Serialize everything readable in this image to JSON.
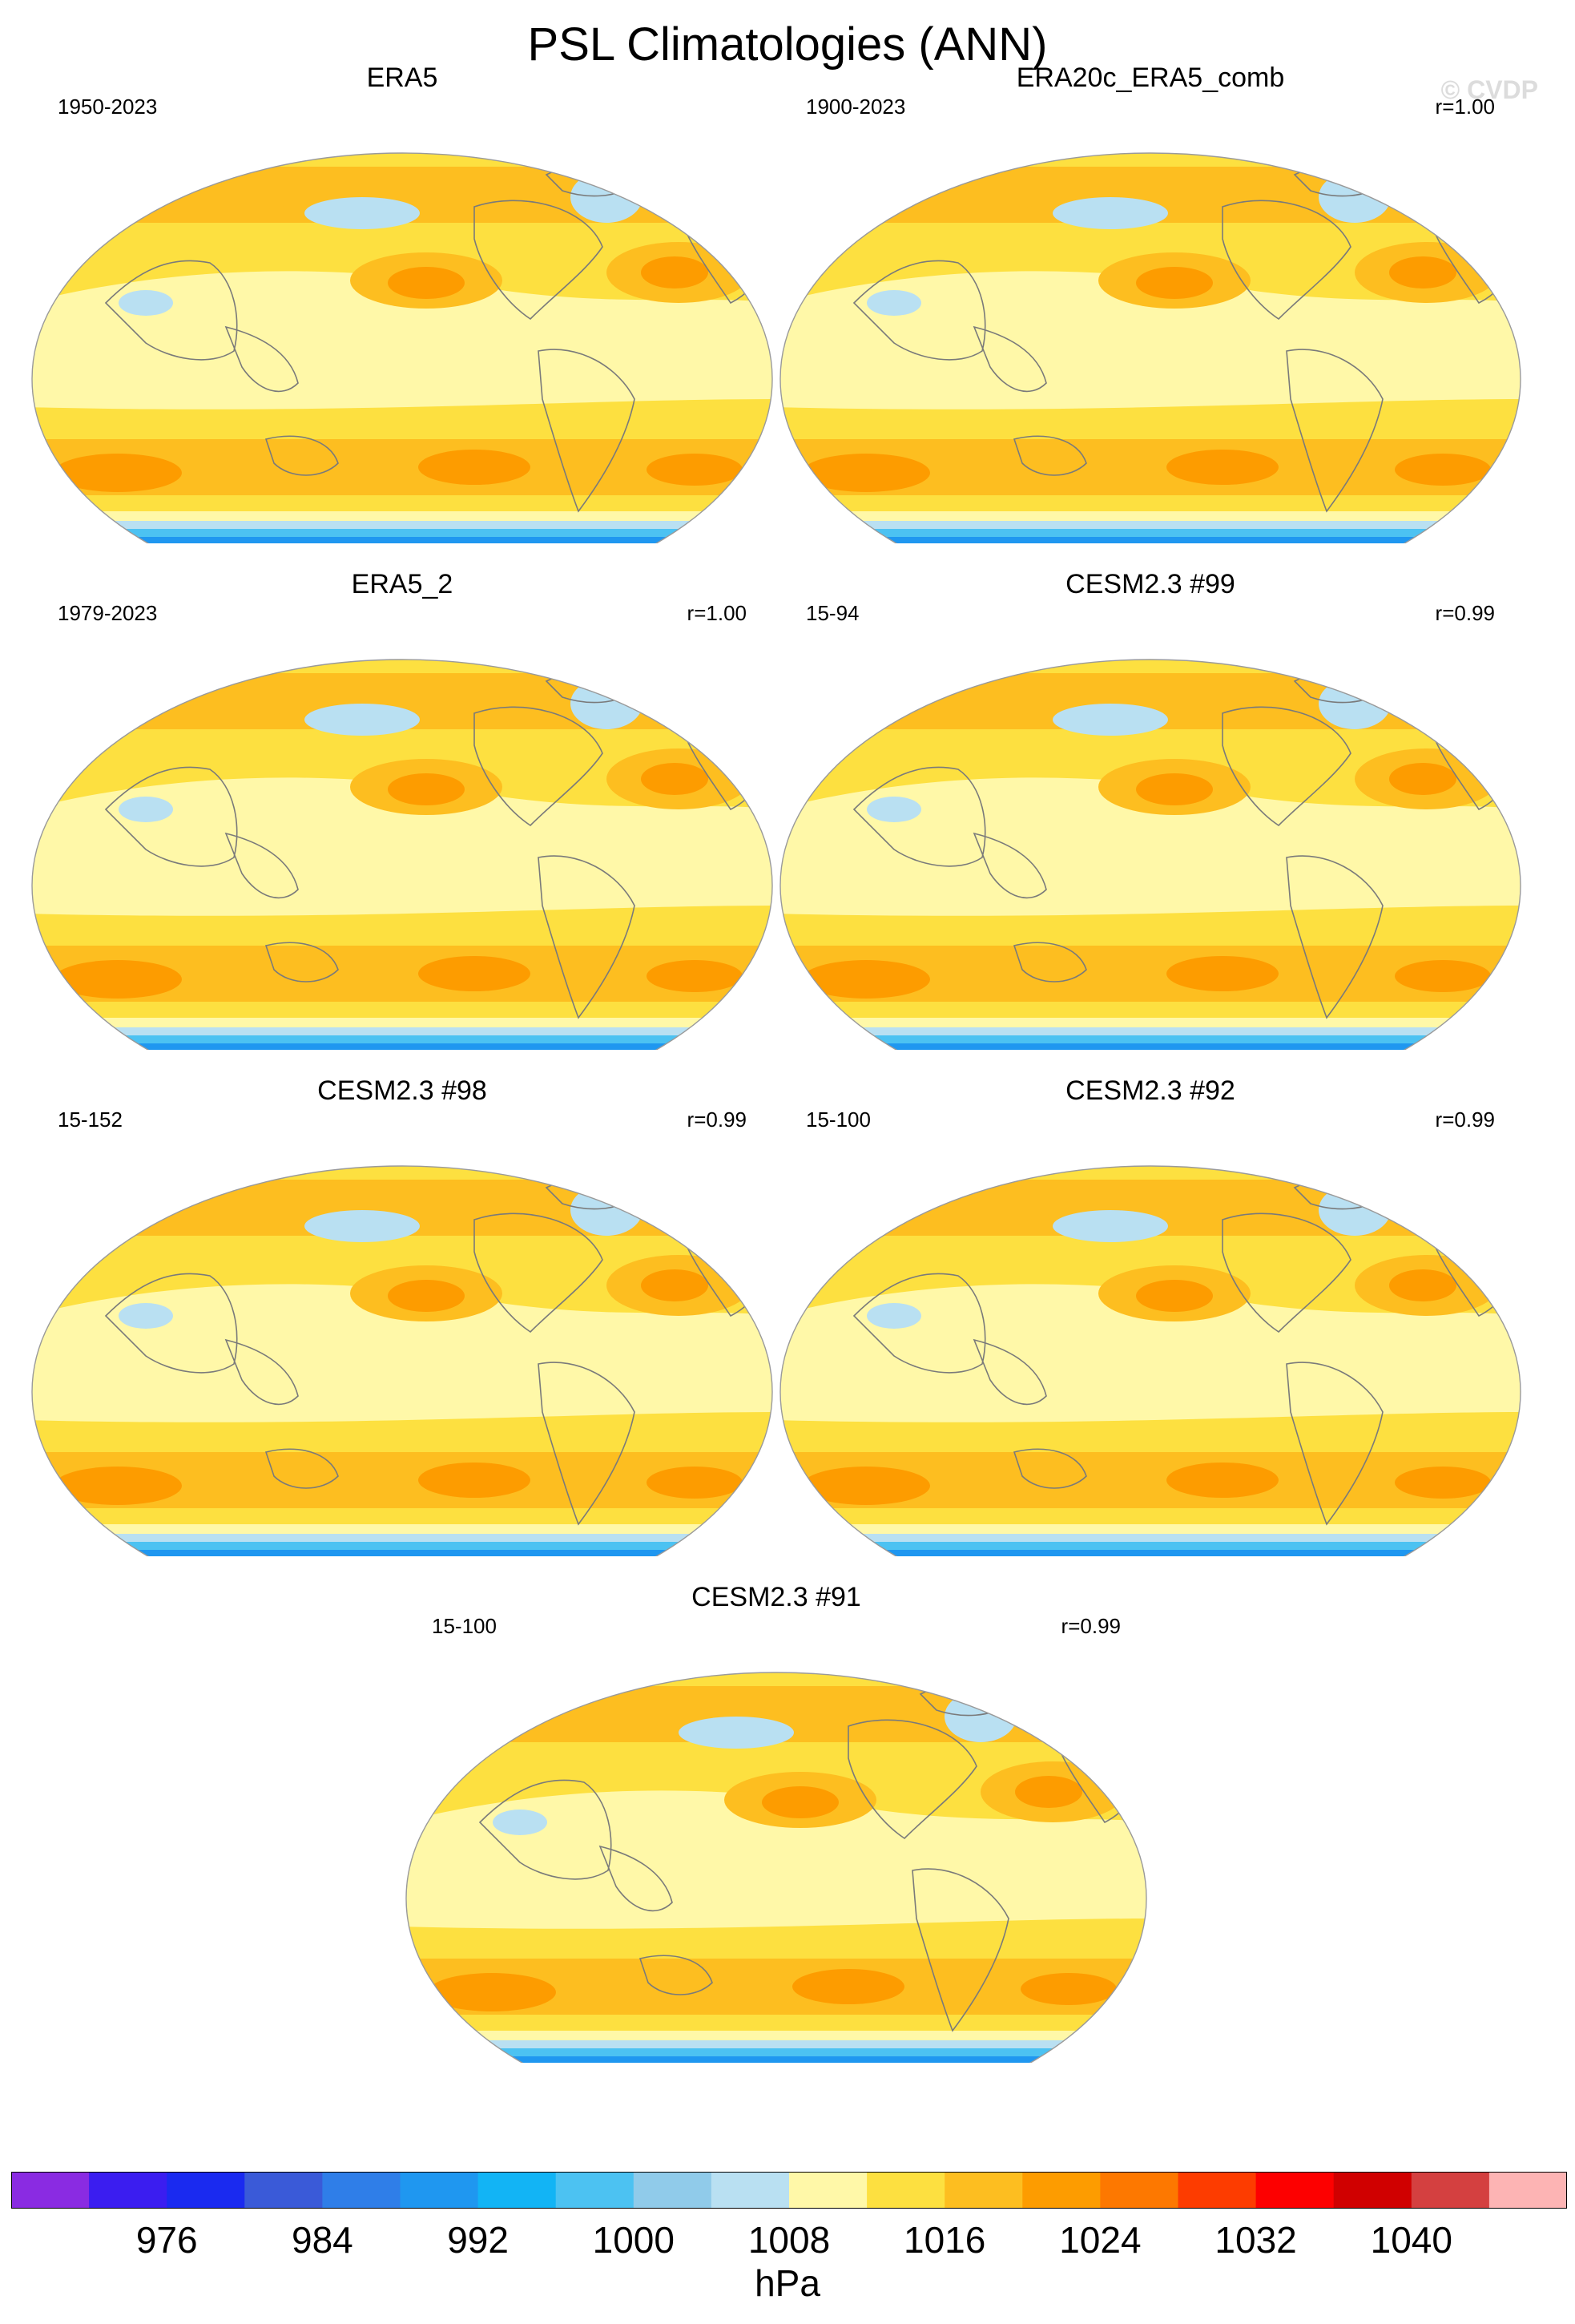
{
  "title": "PSL Climatologies (ANN)",
  "watermark": "© CVDP",
  "panels": [
    {
      "title": "ERA5",
      "period": "1950-2023",
      "corr": ""
    },
    {
      "title": "ERA20c_ERA5_comb",
      "period": "1900-2023",
      "corr": "r=1.00"
    },
    {
      "title": "ERA5_2",
      "period": "1979-2023",
      "corr": "r=1.00"
    },
    {
      "title": "CESM2.3 #99",
      "period": "15-94",
      "corr": "r=0.99"
    },
    {
      "title": "CESM2.3 #98",
      "period": "15-152",
      "corr": "r=0.99"
    },
    {
      "title": "CESM2.3 #92",
      "period": "15-100",
      "corr": "r=0.99"
    },
    {
      "title": "CESM2.3 #91",
      "period": "15-100",
      "corr": "r=0.99"
    }
  ],
  "colorbar": {
    "units": "hPa",
    "tick_labels": [
      "976",
      "984",
      "992",
      "1000",
      "1008",
      "1016",
      "1024",
      "1032",
      "1040"
    ],
    "colors": [
      "#8a2be2",
      "#3b1df0",
      "#1a2af0",
      "#3a5ad8",
      "#2f7ee8",
      "#1f97f0",
      "#12b4f5",
      "#4cc2f2",
      "#90cbea",
      "#b9e0f2",
      "#fff8a8",
      "#fde040",
      "#fdbe20",
      "#fd9c00",
      "#fd7800",
      "#fd3c00",
      "#fd0000",
      "#d00000",
      "#d44040",
      "#fdb4b4"
    ]
  }
}
